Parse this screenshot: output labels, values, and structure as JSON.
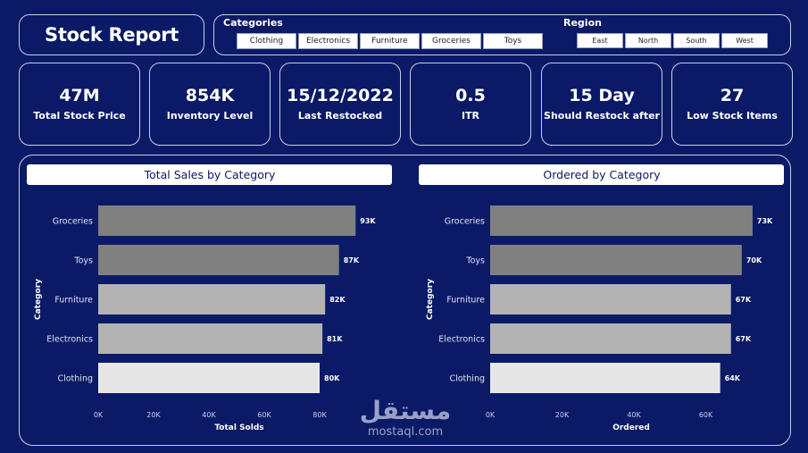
{
  "header": {
    "title": "Stock Report"
  },
  "filters": {
    "categories_label": "Categories",
    "categories": [
      "Clothing",
      "Electronics",
      "Furniture",
      "Groceries",
      "Toys"
    ],
    "region_label": "Region",
    "regions": [
      "East",
      "North",
      "South",
      "West"
    ]
  },
  "kpis": [
    {
      "value": "47M",
      "label": "Total  Stock Price"
    },
    {
      "value": "854K",
      "label": "Inventory Level"
    },
    {
      "value": "15/12/2022",
      "label": "Last Restocked"
    },
    {
      "value": "0.5",
      "label": "ITR"
    },
    {
      "value": "15 Day",
      "label": "Should Restock after"
    },
    {
      "value": "27",
      "label": "Low Stock Items"
    }
  ],
  "colors": {
    "background": "#0a1a66",
    "bar_dark": "#808080",
    "bar_mid": "#b3b3b3",
    "bar_light": "#e6e6e6"
  },
  "watermark": {
    "arabic": "مستقل",
    "site": "mostaql.com"
  },
  "chart_data": [
    {
      "type": "bar",
      "orientation": "horizontal",
      "title": "Total Sales by Category",
      "xlabel": "Total Solds",
      "ylabel": "Category",
      "categories": [
        "Groceries",
        "Toys",
        "Furniture",
        "Electronics",
        "Clothing"
      ],
      "values": [
        93,
        87,
        82,
        81,
        80
      ],
      "data_labels": [
        "93K",
        "87K",
        "82K",
        "81K",
        "80K"
      ],
      "xticks": [
        "0K",
        "20K",
        "40K",
        "60K",
        "80K"
      ],
      "xlim": [
        0,
        100
      ],
      "grid": false
    },
    {
      "type": "bar",
      "orientation": "horizontal",
      "title": "Ordered by Category",
      "xlabel": "Ordered",
      "ylabel": "Category",
      "categories": [
        "Groceries",
        "Toys",
        "Furniture",
        "Electronics",
        "Clothing"
      ],
      "values": [
        73,
        70,
        67,
        67,
        64
      ],
      "data_labels": [
        "73K",
        "70K",
        "67K",
        "67K",
        "64K"
      ],
      "xticks": [
        "0K",
        "20K",
        "40K",
        "60K"
      ],
      "xlim": [
        0,
        77
      ],
      "grid": false
    }
  ]
}
